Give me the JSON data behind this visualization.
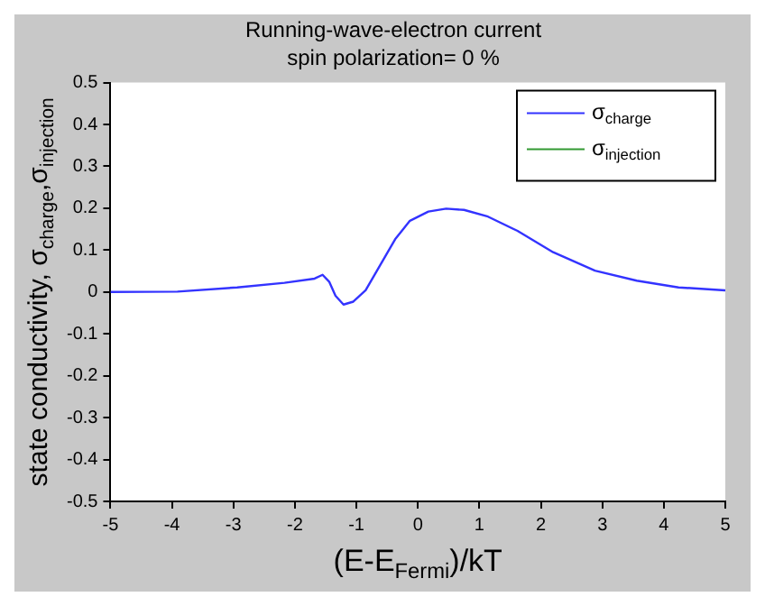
{
  "chart_data": {
    "type": "line",
    "title": "Running-wave-electron current",
    "subtitle": "spin polarization= 0 %",
    "xlabel": "(E-E$_{Fermi}$)/kT",
    "ylabel": "state conductivity, σ$_{charge}$,σ$_{injection}$",
    "xlim": [
      -5,
      5
    ],
    "xticks": [
      -5,
      -4,
      -3,
      -2,
      -1,
      0,
      1,
      2,
      3,
      4,
      5
    ],
    "ylim": [
      -0.5,
      0.5
    ],
    "yticks": [
      -0.5,
      -0.4,
      -0.3,
      -0.2,
      -0.1,
      0,
      0.1,
      0.2,
      0.3,
      0.4,
      0.5
    ],
    "grid": false,
    "legend": "top right",
    "marker": "none",
    "line_style": "solid",
    "x": [
      -5,
      -3.91,
      -2.94,
      -2.17,
      -1.68,
      -1.55,
      -1.44,
      -1.34,
      -1.21,
      -1.05,
      -0.85,
      -0.61,
      -0.37,
      -0.13,
      0.17,
      0.46,
      0.75,
      1.14,
      1.62,
      2.2,
      2.88,
      3.56,
      4.24,
      5
    ],
    "series": [
      {
        "name": "σ$_{charge}$",
        "color": "#3333ff",
        "values": [
          0,
          0.001,
          0.011,
          0.022,
          0.032,
          0.041,
          0.024,
          -0.009,
          -0.03,
          -0.023,
          0.004,
          0.065,
          0.126,
          0.17,
          0.192,
          0.199,
          0.196,
          0.18,
          0.146,
          0.095,
          0.051,
          0.027,
          0.011,
          0.004
        ]
      },
      {
        "name": "σ$_{injection}$",
        "color": "#339933",
        "values": [
          null,
          null,
          null,
          null,
          null,
          null,
          null,
          null,
          null,
          null,
          null,
          null,
          null,
          null,
          null,
          null,
          null,
          null,
          null,
          null,
          null,
          null,
          null,
          null
        ]
      }
    ]
  }
}
